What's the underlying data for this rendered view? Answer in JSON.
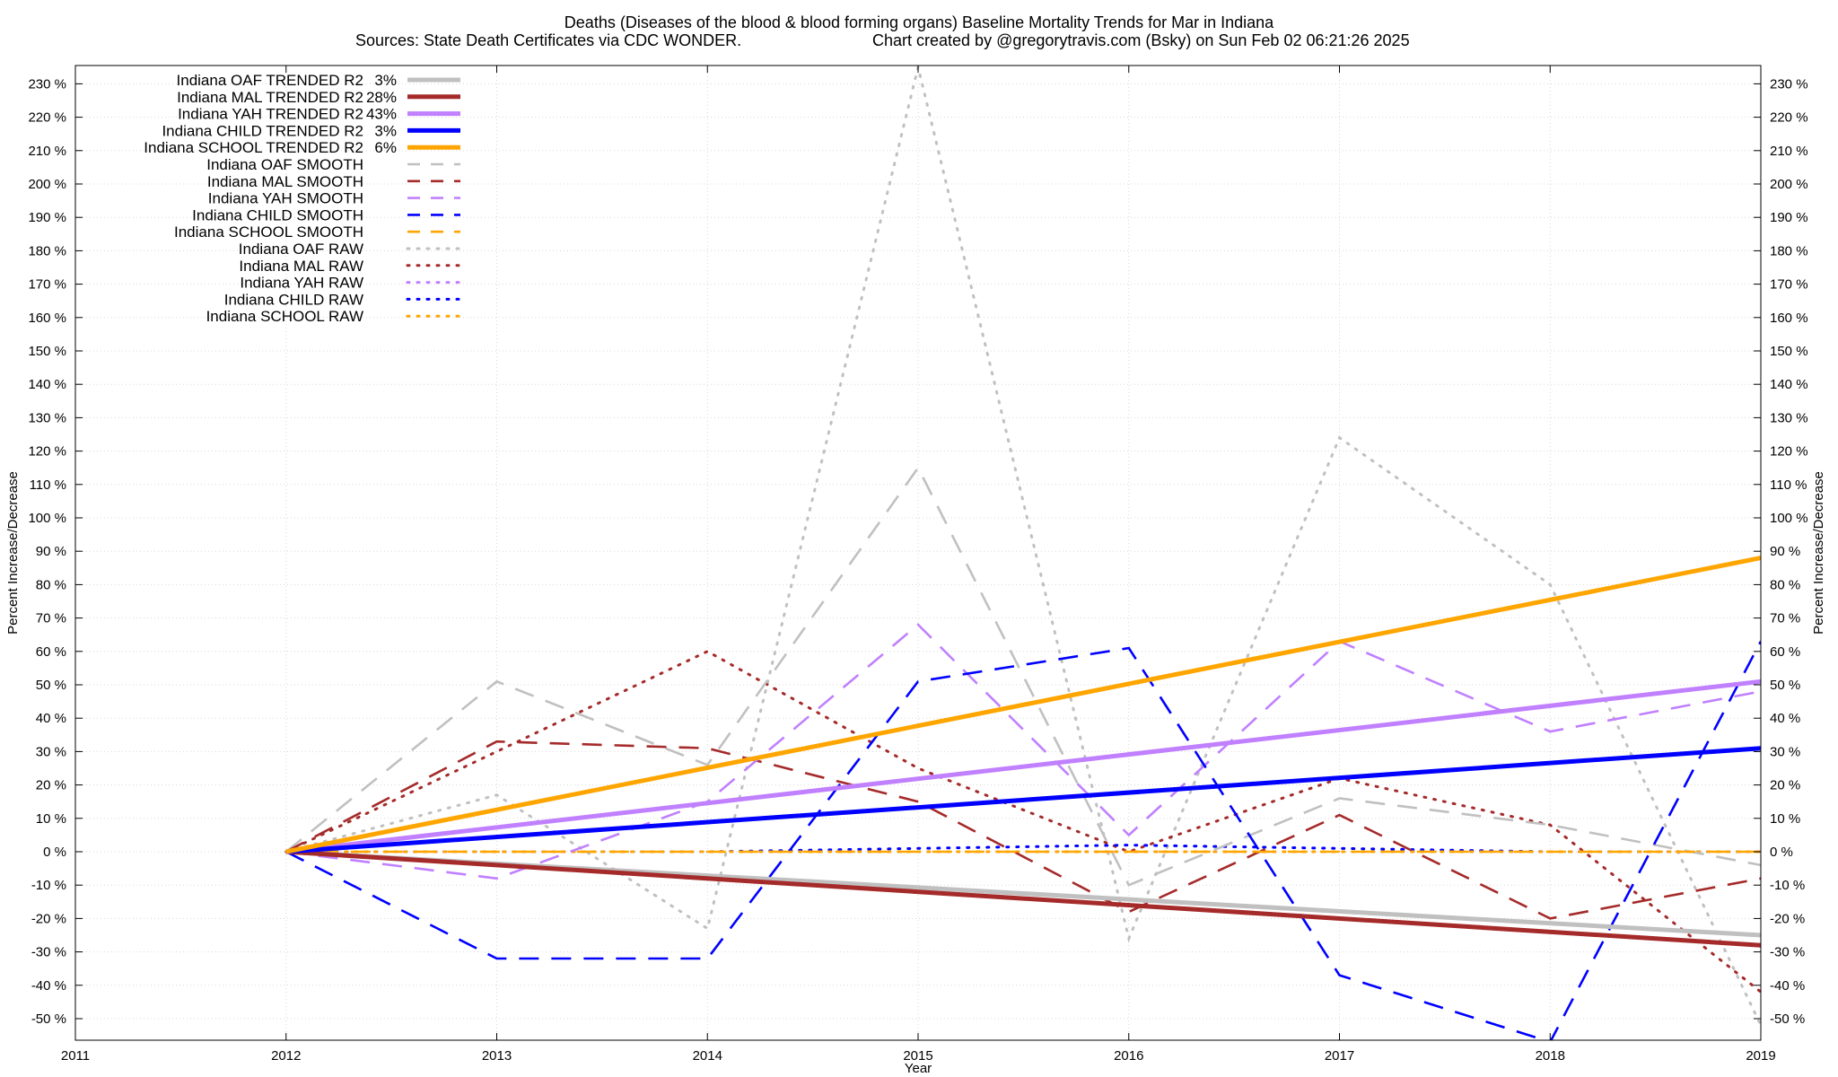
{
  "chart_data": {
    "type": "line",
    "title": "Deaths (Diseases of the blood & blood forming organs)  Baseline Mortality Trends for Mar in Indiana",
    "subtitle_left": "Sources: State Death Certificates via CDC WONDER.",
    "subtitle_right": "Chart created by @gregorytravis.com (Bsky) on Sun Feb 02 06:21:26 2025",
    "xlabel": "Year",
    "ylabel": "Percent Increase/Decrease",
    "xlim": [
      2011,
      2019
    ],
    "ylim": [
      -50,
      230
    ],
    "x_ticks": [
      "2011",
      "2012",
      "2013",
      "2014",
      "2015",
      "2016",
      "2017",
      "2018",
      "2019"
    ],
    "y_tick_values": [
      -50,
      -40,
      -30,
      -20,
      -10,
      0,
      10,
      20,
      30,
      40,
      50,
      60,
      70,
      80,
      90,
      100,
      110,
      120,
      130,
      140,
      150,
      160,
      170,
      180,
      190,
      200,
      210,
      220,
      230
    ],
    "y_tick_labels": [
      "-50 %",
      "-40 %",
      "-30 %",
      "-20 %",
      "-10 %",
      "0 %",
      "10 %",
      "20 %",
      "30 %",
      "40 %",
      "50 %",
      "60 %",
      "70 %",
      "80 %",
      "90 %",
      "100 %",
      "110 %",
      "120 %",
      "130 %",
      "140 %",
      "150 %",
      "160 %",
      "170 %",
      "180 %",
      "190 %",
      "200 %",
      "210 %",
      "220 %",
      "230 %"
    ],
    "grid": true,
    "legend_position": "top-left",
    "series": [
      {
        "name": "Indiana OAF TRENDED R2",
        "r2": "3%",
        "color": "#c0c0c0",
        "style": "trend",
        "x": [
          2012,
          2019
        ],
        "values": [
          0,
          -25
        ]
      },
      {
        "name": "Indiana MAL TRENDED R2",
        "r2": "28%",
        "color": "#a52a2a",
        "style": "trend",
        "x": [
          2012,
          2019
        ],
        "values": [
          0,
          -28
        ]
      },
      {
        "name": "Indiana YAH TRENDED R2",
        "r2": "43%",
        "color": "#c080ff",
        "style": "trend",
        "x": [
          2012,
          2019
        ],
        "values": [
          0,
          51
        ]
      },
      {
        "name": "Indiana CHILD TRENDED R2",
        "r2": "3%",
        "color": "#0000ff",
        "style": "trend",
        "x": [
          2012,
          2019
        ],
        "values": [
          0,
          31
        ]
      },
      {
        "name": "Indiana SCHOOL TRENDED R2",
        "r2": "6%",
        "color": "#ffa500",
        "style": "trend",
        "x": [
          2012,
          2019
        ],
        "values": [
          0,
          88
        ]
      },
      {
        "name": "Indiana OAF SMOOTH",
        "color": "#c0c0c0",
        "style": "smooth",
        "x": [
          2012,
          2013,
          2014,
          2015,
          2016,
          2017,
          2018,
          2019
        ],
        "values": [
          0,
          51,
          26,
          115,
          -10,
          16,
          8,
          -4
        ]
      },
      {
        "name": "Indiana MAL SMOOTH",
        "color": "#a52a2a",
        "style": "smooth",
        "x": [
          2012,
          2013,
          2014,
          2015,
          2016,
          2017,
          2018,
          2019
        ],
        "values": [
          0,
          33,
          31,
          15,
          -18,
          11,
          -20,
          -8
        ]
      },
      {
        "name": "Indiana YAH SMOOTH",
        "color": "#c080ff",
        "style": "smooth",
        "x": [
          2012,
          2013,
          2014,
          2015,
          2016,
          2017,
          2018,
          2019
        ],
        "values": [
          0,
          -8,
          15,
          68,
          5,
          63,
          36,
          48
        ]
      },
      {
        "name": "Indiana CHILD SMOOTH",
        "color": "#0000ff",
        "style": "smooth",
        "x": [
          2012,
          2013,
          2014,
          2015,
          2016,
          2017,
          2018,
          2019
        ],
        "values": [
          0,
          -32,
          -32,
          51,
          61,
          -37,
          -57,
          63
        ]
      },
      {
        "name": "Indiana SCHOOL SMOOTH",
        "color": "#ffa500",
        "style": "smooth",
        "x": [
          2012,
          2013,
          2014,
          2015,
          2016,
          2017,
          2018,
          2019
        ],
        "values": [
          0,
          0,
          0,
          0,
          0,
          0,
          0,
          0
        ]
      },
      {
        "name": "Indiana OAF RAW",
        "color": "#c0c0c0",
        "style": "raw",
        "x": [
          2012,
          2013,
          2014,
          2015,
          2016,
          2017,
          2018,
          2019
        ],
        "values": [
          0,
          17,
          -23,
          235,
          -26,
          124,
          80,
          -52
        ]
      },
      {
        "name": "Indiana MAL RAW",
        "color": "#a52a2a",
        "style": "raw",
        "x": [
          2012,
          2013,
          2014,
          2015,
          2016,
          2017,
          2018,
          2019
        ],
        "values": [
          0,
          30,
          60,
          25,
          0,
          22,
          8,
          -42
        ]
      },
      {
        "name": "Indiana YAH RAW",
        "color": "#c080ff",
        "style": "raw",
        "x": [
          2012,
          2013,
          2014,
          2015,
          2016,
          2017,
          2018,
          2019
        ],
        "values": [
          0,
          0,
          0,
          0,
          0,
          0,
          0,
          0
        ]
      },
      {
        "name": "Indiana CHILD RAW",
        "color": "#0000ff",
        "style": "raw",
        "x": [
          2012,
          2013,
          2014,
          2015,
          2016,
          2017,
          2018,
          2019
        ],
        "values": [
          0,
          0,
          0,
          1,
          2,
          1,
          0,
          0
        ]
      },
      {
        "name": "Indiana SCHOOL RAW",
        "color": "#ffa500",
        "style": "raw",
        "x": [
          2012,
          2013,
          2014,
          2015,
          2016,
          2017,
          2018,
          2019
        ],
        "values": [
          0,
          0,
          0,
          0,
          0,
          0,
          0,
          0
        ]
      }
    ]
  }
}
